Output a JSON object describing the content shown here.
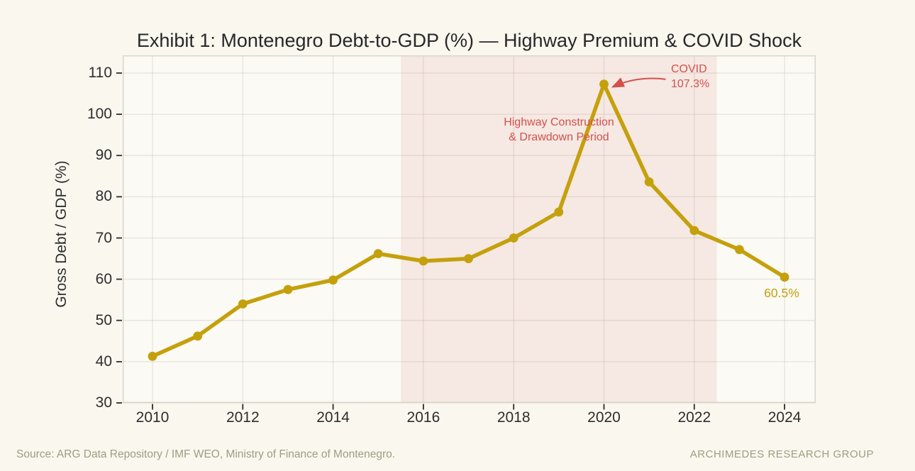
{
  "chart_data": {
    "type": "line",
    "title": "Exhibit 1: Montenegro Debt-to-GDP (%) — Highway Premium & COVID Shock",
    "xlabel": "",
    "ylabel": "Gross Debt / GDP (%)",
    "x": [
      2010,
      2011,
      2012,
      2013,
      2014,
      2015,
      2016,
      2017,
      2018,
      2019,
      2020,
      2021,
      2022,
      2023,
      2024
    ],
    "series": [
      {
        "name": "Gross Debt / GDP (%)",
        "values": [
          41.3,
          46.2,
          54.0,
          57.5,
          59.8,
          66.2,
          64.4,
          65.0,
          70.0,
          76.3,
          107.3,
          83.6,
          71.8,
          67.2,
          60.5
        ]
      }
    ],
    "x_ticks": [
      2010,
      2012,
      2014,
      2016,
      2018,
      2020,
      2022,
      2024
    ],
    "y_ticks": [
      30,
      40,
      50,
      60,
      70,
      80,
      90,
      100,
      110
    ],
    "xlim": [
      2009.34,
      2024.69
    ],
    "ylim": [
      30,
      114.3
    ],
    "grid": true,
    "legend_position": "none",
    "band": {
      "from": 2015.5,
      "to": 2022.5,
      "label": "Highway Construction & Drawdown Period"
    },
    "point_annotations": [
      {
        "text": "COVID 107.3%",
        "target_x": 2020,
        "target_y": 107.3
      },
      {
        "text": "60.5%",
        "target_x": 2024,
        "target_y": 60.5
      }
    ]
  },
  "annotations": {
    "covid_line1": "COVID",
    "covid_line2": "107.3%",
    "band_label_line1": "Highway Construction",
    "band_label_line2": "& Drawdown Period",
    "end_label": "60.5%"
  },
  "footer": {
    "source": "Source: ARG Data Repository / IMF WEO, Ministry of Finance of Montenegro.",
    "brand": "ARCHIMEDES RESEARCH GROUP"
  },
  "colors": {
    "line": "#C4A00C",
    "annotation_red": "#D3504C",
    "band_fill": "#F6E8E2",
    "page_bg": "#FAF7EF",
    "plot_bg": "#FBFAF4",
    "grid_line": "#A09888",
    "spine": "#D8D5CB",
    "tick_mark": "#2D2D2D",
    "text_dark": "#2D2D2D",
    "footer_text": "#9AA080"
  }
}
